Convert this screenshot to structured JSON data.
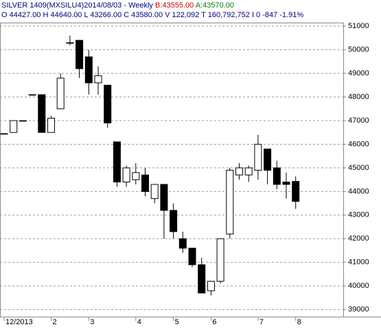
{
  "chart_data": {
    "type": "candlestick",
    "title": "SILVER 1409(MXSILU4)2014/08/03 - Weekly",
    "bid": "B:43555.00",
    "ask": "A:43570.00",
    "summary": "O 44427.00 H 44640.00 L 43266.00 C 43580.00 V 122,092 T 160,792,752 I 0 -847 -1.91%",
    "categories": [
      "12/2013",
      null,
      null,
      null,
      null,
      "2",
      null,
      null,
      null,
      "3",
      null,
      null,
      null,
      null,
      "4",
      null,
      null,
      null,
      "5",
      null,
      null,
      null,
      "6",
      null,
      null,
      null,
      null,
      "7",
      null,
      null,
      null,
      "8"
    ],
    "open": [
      46450,
      46500,
      47000,
      48100,
      48100,
      46500,
      47500,
      50300,
      50400,
      49700,
      48600,
      48500,
      46100,
      44400,
      44500,
      44700,
      43700,
      44300,
      43200,
      42000,
      41600,
      40900,
      39800,
      40200,
      42200,
      44700,
      44700,
      44900,
      45800,
      45000,
      44400,
      44427
    ],
    "high": [
      46450,
      47000,
      47000,
      48100,
      48100,
      47200,
      49000,
      50600,
      50400,
      50000,
      49300,
      48500,
      46100,
      45100,
      45200,
      45000,
      44300,
      44300,
      43500,
      42300,
      41600,
      41200,
      40200,
      42000,
      45000,
      45200,
      45100,
      46400,
      45800,
      45300,
      44800,
      44640
    ],
    "low": [
      46450,
      46500,
      47000,
      48100,
      46500,
      46500,
      47500,
      50200,
      48800,
      48100,
      48100,
      46700,
      44200,
      44200,
      44300,
      43800,
      43500,
      42000,
      42000,
      41400,
      40800,
      39700,
      39600,
      40100,
      42000,
      44500,
      44400,
      44500,
      44300,
      44100,
      43700,
      43266
    ],
    "close": [
      46450,
      47000,
      47000,
      48100,
      46500,
      47100,
      48800,
      50300,
      49200,
      48600,
      48900,
      46900,
      44400,
      45000,
      44800,
      44000,
      44300,
      43200,
      42300,
      41600,
      40900,
      39700,
      40200,
      42000,
      44900,
      45000,
      45000,
      46000,
      44900,
      44300,
      44300,
      43580
    ],
    "up_color": "#ffffff",
    "down_color": "#000000",
    "ylim": [
      38700,
      51150
    ],
    "yticks": [
      39000,
      40000,
      41000,
      42000,
      43000,
      44000,
      45000,
      46000,
      47000,
      48000,
      49000,
      50000,
      51000
    ],
    "grid": true
  }
}
